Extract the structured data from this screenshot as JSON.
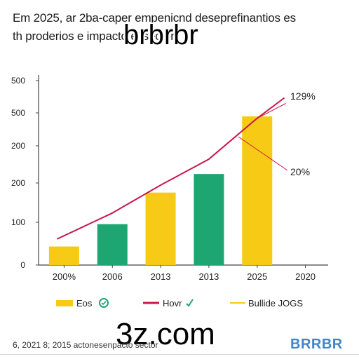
{
  "title_lines": [
    "Em 2025, ar 2ba-caper empenicnd desepreﬁnantios es",
    "th proderios e impacto el sector"
  ],
  "overlay_texts": [
    "brbrbr",
    "3z.com"
  ],
  "footer_note": "6, 2021 8; 2015 actonesenpacto sector",
  "brand_text": "BRRBR",
  "colors": {
    "yellow": "#F7CB15",
    "green": "#1DA672",
    "line": "#C8174A",
    "axis": "#444444",
    "brand": "#3F86C9"
  },
  "chart_data": {
    "type": "bar",
    "categories": [
      "200%",
      "2006",
      "2013",
      "2013",
      "2025",
      "2020"
    ],
    "y_tick_labels": [
      "0",
      "100",
      "200",
      "200",
      "500",
      "500"
    ],
    "ylim": [
      0,
      500
    ],
    "values": [
      50,
      110,
      195,
      245,
      400,
      null
    ],
    "bar_colors": [
      "yellow",
      "green",
      "yellow",
      "green",
      "yellow",
      null
    ],
    "series": [
      {
        "name": "Hovr",
        "type": "line",
        "values": [
          70,
          140,
          215,
          285,
          395,
          450
        ]
      }
    ],
    "annotations": [
      "129%",
      "20%"
    ],
    "legend": [
      {
        "label": "Eos",
        "swatch": "yellow",
        "icon": "check-circle-icon"
      },
      {
        "label": "Hovr",
        "swatch": "line",
        "icon": "checkmark-icon"
      },
      {
        "label": "Bullide JOGS",
        "swatch": "yellow"
      }
    ],
    "legend_position": "bottom",
    "grid": false
  }
}
